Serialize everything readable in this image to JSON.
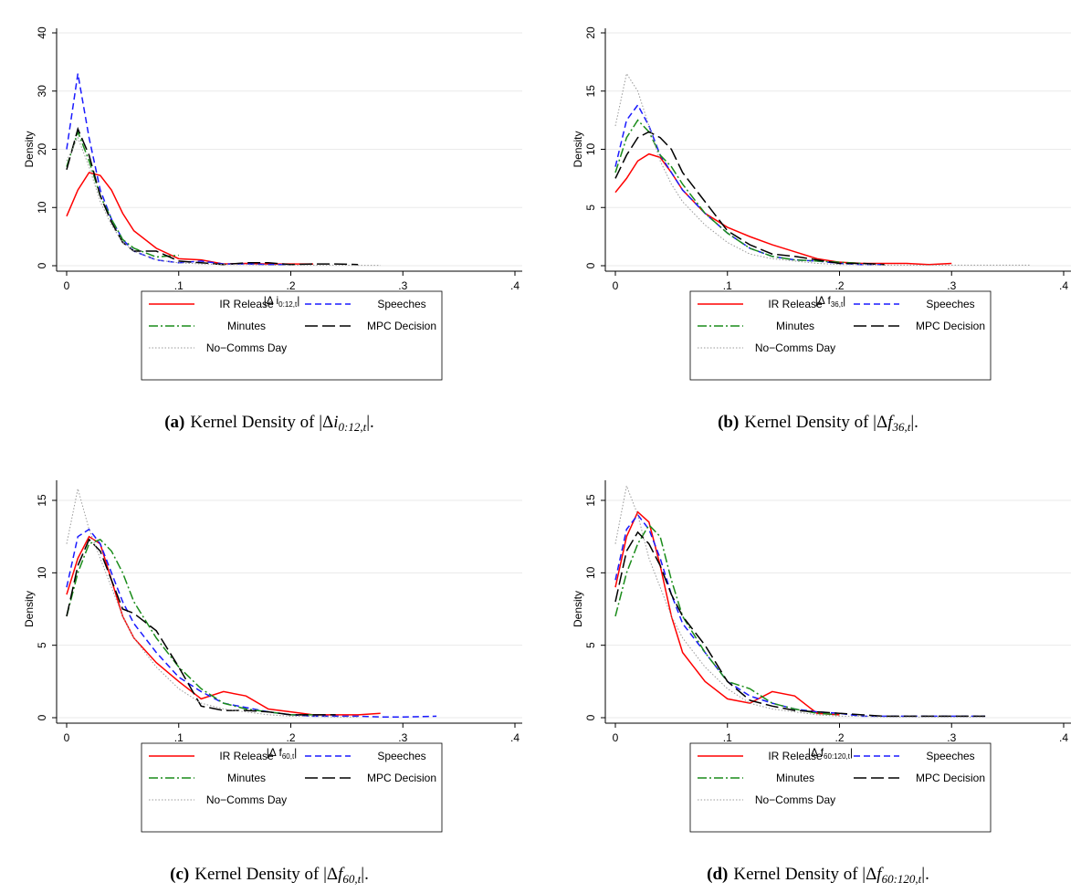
{
  "chart_data": [
    {
      "type": "line",
      "label": "(a)",
      "caption_prefix": "Kernel Density of |Δ",
      "caption_symbol": "i",
      "caption_subscript": "0:12,t",
      "caption_suffix": "|.",
      "xlabel": "|Δ i",
      "xlabel_subscript": "0:12,t",
      "xlabel_suffix": "|",
      "ylabel": "Density",
      "xlim": [
        0,
        0.4
      ],
      "ylim": [
        0,
        40
      ],
      "grid": true,
      "xticks": [
        0,
        {
          "value": 0.1,
          "label": ".1"
        },
        {
          "value": 0.2,
          "label": ".2"
        },
        {
          "value": 0.3,
          "label": ".3"
        },
        {
          "value": 0.4,
          "label": ".4"
        }
      ],
      "yticks": [
        0,
        10,
        20,
        30,
        40
      ],
      "x": [
        0,
        0.01,
        0.02,
        0.03,
        0.04,
        0.05,
        0.06,
        0.08,
        0.1,
        0.12,
        0.14,
        0.16,
        0.18,
        0.2,
        0.22,
        0.24,
        0.26,
        0.28,
        0.3,
        0.33,
        0.37
      ],
      "series": [
        {
          "name": "IR Release",
          "color": "#ff0000",
          "style": "solid",
          "values": [
            8.5,
            13,
            16,
            15.5,
            13,
            9,
            6,
            3,
            1.2,
            1,
            0.3,
            0.4,
            0.3,
            0.3,
            0.3,
            null,
            null,
            null,
            null,
            null,
            null
          ]
        },
        {
          "name": "Speeches",
          "color": "#1a1aff",
          "style": "dashed",
          "values": [
            20,
            33,
            22,
            13,
            8,
            4.5,
            2.5,
            1,
            0.5,
            0.8,
            0.3,
            0.3,
            0.2,
            0.2,
            null,
            null,
            null,
            null,
            null,
            null,
            null
          ]
        },
        {
          "name": "Minutes",
          "color": "#1a8c1a",
          "style": "dashdot",
          "values": [
            17,
            23,
            18,
            12,
            8,
            4.5,
            3,
            1.5,
            1.8,
            null,
            null,
            null,
            null,
            null,
            null,
            null,
            null,
            null,
            null,
            null,
            null
          ]
        },
        {
          "name": "MPC Decision",
          "color": "#000000",
          "style": "longdash",
          "values": [
            16.5,
            23.5,
            19,
            12,
            7.5,
            4,
            2.5,
            2.5,
            0.8,
            0.5,
            0.2,
            0.5,
            0.5,
            0.2,
            0.3,
            0.3,
            0.2,
            null,
            null,
            null,
            null
          ]
        },
        {
          "name": "No−Comms Day",
          "color": "#999999",
          "style": "dotted",
          "values": [
            18,
            22,
            17,
            11,
            7,
            4,
            2.5,
            1,
            0.5,
            0.3,
            0.2,
            0.2,
            0.1,
            0.1,
            0.1,
            0.1,
            0.05,
            0.05,
            null,
            null,
            null
          ]
        }
      ]
    },
    {
      "type": "line",
      "label": "(b)",
      "caption_prefix": "Kernel Density of |Δ",
      "caption_symbol": "f",
      "caption_subscript": "36,t",
      "caption_suffix": "|.",
      "xlabel": "|Δ f",
      "xlabel_subscript": "36,t",
      "xlabel_suffix": "|",
      "ylabel": "Density",
      "xlim": [
        0,
        0.4
      ],
      "ylim": [
        0,
        20
      ],
      "grid": true,
      "xticks": [
        0,
        {
          "value": 0.1,
          "label": ".1"
        },
        {
          "value": 0.2,
          "label": ".2"
        },
        {
          "value": 0.3,
          "label": ".3"
        },
        {
          "value": 0.4,
          "label": ".4"
        }
      ],
      "yticks": [
        0,
        5,
        10,
        15,
        20
      ],
      "x": [
        0,
        0.01,
        0.02,
        0.03,
        0.04,
        0.05,
        0.06,
        0.08,
        0.1,
        0.12,
        0.14,
        0.16,
        0.18,
        0.2,
        0.22,
        0.24,
        0.26,
        0.28,
        0.3,
        0.33,
        0.37
      ],
      "series": [
        {
          "name": "IR Release",
          "color": "#ff0000",
          "style": "solid",
          "values": [
            6.3,
            7.5,
            9,
            9.6,
            9.3,
            8,
            6.5,
            4.5,
            3.3,
            2.5,
            1.8,
            1.2,
            0.6,
            0.3,
            0.2,
            0.2,
            0.2,
            0.1,
            0.2,
            null,
            null
          ]
        },
        {
          "name": "Speeches",
          "color": "#1a1aff",
          "style": "dashed",
          "values": [
            8.5,
            12.5,
            13.8,
            12,
            9.5,
            8,
            6.5,
            4.5,
            2.8,
            1.5,
            0.8,
            0.5,
            0.4,
            0.2,
            0.1,
            0.1,
            null,
            null,
            null,
            null,
            null
          ]
        },
        {
          "name": "Minutes",
          "color": "#1a8c1a",
          "style": "dashdot",
          "values": [
            8,
            11,
            12.5,
            11.5,
            9.5,
            8.5,
            7,
            4.5,
            2.8,
            1.5,
            0.8,
            0.5,
            0.4,
            0.3,
            0.2,
            null,
            null,
            null,
            null,
            null,
            null
          ]
        },
        {
          "name": "MPC Decision",
          "color": "#000000",
          "style": "longdash",
          "values": [
            7.5,
            9.5,
            11,
            11.5,
            11,
            10,
            8,
            5.5,
            3,
            1.8,
            1,
            0.8,
            0.5,
            0.2,
            0.2,
            0.1,
            null,
            null,
            null,
            null,
            null
          ]
        },
        {
          "name": "No−Comms Day",
          "color": "#999999",
          "style": "dotted",
          "values": [
            12,
            16.5,
            15,
            12,
            9,
            7,
            5.5,
            3.5,
            2,
            1,
            0.6,
            0.4,
            0.2,
            0.1,
            0.1,
            0.05,
            0.05,
            0.05,
            0.05,
            0.05,
            0.05
          ]
        }
      ]
    },
    {
      "type": "line",
      "label": "(c)",
      "caption_prefix": "Kernel Density of |Δ",
      "caption_symbol": "f",
      "caption_subscript": "60,t",
      "caption_suffix": "|.",
      "xlabel": "|Δ f",
      "xlabel_subscript": "60,t",
      "xlabel_suffix": "|",
      "ylabel": "Density",
      "xlim": [
        0,
        0.4
      ],
      "ylim": [
        0,
        15
      ],
      "grid": true,
      "xticks": [
        0,
        {
          "value": 0.1,
          "label": ".1"
        },
        {
          "value": 0.2,
          "label": ".2"
        },
        {
          "value": 0.3,
          "label": ".3"
        },
        {
          "value": 0.4,
          "label": ".4"
        }
      ],
      "yticks": [
        0,
        5,
        10,
        15
      ],
      "x": [
        0,
        0.01,
        0.02,
        0.03,
        0.04,
        0.05,
        0.06,
        0.08,
        0.1,
        0.12,
        0.14,
        0.16,
        0.18,
        0.2,
        0.22,
        0.24,
        0.26,
        0.28,
        0.3,
        0.33,
        0.37
      ],
      "series": [
        {
          "name": "IR Release",
          "color": "#ff0000",
          "style": "solid",
          "values": [
            8.5,
            11,
            12.5,
            12,
            9.5,
            7,
            5.5,
            3.8,
            2.5,
            1.3,
            1.8,
            1.5,
            0.6,
            0.4,
            0.2,
            0.2,
            0.2,
            0.3,
            null,
            null,
            null
          ]
        },
        {
          "name": "Speeches",
          "color": "#1a1aff",
          "style": "dashed",
          "values": [
            9,
            12.5,
            13,
            12,
            10,
            8,
            6.5,
            4.5,
            2.8,
            1.8,
            1,
            0.7,
            0.4,
            0.2,
            0.1,
            0.1,
            0.1,
            0.05,
            0.05,
            0.1,
            null
          ]
        },
        {
          "name": "Minutes",
          "color": "#1a8c1a",
          "style": "dashdot",
          "values": [
            7,
            10,
            12,
            12.3,
            11.5,
            10,
            8,
            5.5,
            3.5,
            2,
            1,
            0.6,
            0.4,
            0.2,
            0.2,
            null,
            null,
            null,
            null,
            null,
            null
          ]
        },
        {
          "name": "MPC Decision",
          "color": "#000000",
          "style": "longdash",
          "values": [
            7,
            10.5,
            12.3,
            11.5,
            9.5,
            7.5,
            7.2,
            6,
            3.5,
            0.8,
            0.5,
            0.5,
            0.4,
            0.2,
            0.2,
            0.2,
            null,
            null,
            null,
            null,
            null
          ]
        },
        {
          "name": "No−Comms Day",
          "color": "#999999",
          "style": "dotted",
          "values": [
            12,
            15.8,
            13,
            11,
            9,
            7,
            5.5,
            3.5,
            2,
            1,
            0.6,
            0.4,
            0.2,
            0.1,
            0.1,
            0.05,
            0.05,
            null,
            null,
            null,
            null
          ]
        }
      ]
    },
    {
      "type": "line",
      "label": "(d)",
      "caption_prefix": "Kernel Density of |Δ",
      "caption_symbol": "f",
      "caption_subscript": "60:120,t",
      "caption_suffix": "|.",
      "xlabel": "|Δ f",
      "xlabel_subscript": "60:120,t",
      "xlabel_suffix": "|",
      "ylabel": "Density",
      "xlim": [
        0,
        0.4
      ],
      "ylim": [
        0,
        15
      ],
      "grid": true,
      "xticks": [
        0,
        {
          "value": 0.1,
          "label": ".1"
        },
        {
          "value": 0.2,
          "label": ".2"
        },
        {
          "value": 0.3,
          "label": ".3"
        },
        {
          "value": 0.4,
          "label": ".4"
        }
      ],
      "yticks": [
        0,
        5,
        10,
        15
      ],
      "x": [
        0,
        0.01,
        0.02,
        0.03,
        0.04,
        0.05,
        0.06,
        0.08,
        0.1,
        0.12,
        0.14,
        0.16,
        0.18,
        0.2,
        0.22,
        0.24,
        0.26,
        0.28,
        0.3,
        0.33,
        0.37
      ],
      "series": [
        {
          "name": "IR Release",
          "color": "#ff0000",
          "style": "solid",
          "values": [
            9,
            12.5,
            14.2,
            13.5,
            10.5,
            7,
            4.5,
            2.5,
            1.3,
            1,
            1.8,
            1.5,
            0.3,
            0.2,
            null,
            null,
            null,
            null,
            null,
            null,
            null
          ]
        },
        {
          "name": "Speeches",
          "color": "#1a1aff",
          "style": "dashed",
          "values": [
            9.5,
            13,
            14,
            13,
            11,
            8.5,
            6.5,
            4.5,
            2.5,
            1.5,
            1,
            0.6,
            0.4,
            0.3,
            0.1,
            0.1,
            0.1,
            0.1,
            0.1,
            0.1,
            null
          ]
        },
        {
          "name": "Minutes",
          "color": "#1a8c1a",
          "style": "dashdot",
          "values": [
            7,
            10,
            12,
            13.3,
            12.5,
            9.5,
            7,
            4.5,
            2.5,
            2,
            1,
            0.6,
            0.3,
            0.2,
            null,
            null,
            null,
            null,
            null,
            null,
            null
          ]
        },
        {
          "name": "MPC Decision",
          "color": "#000000",
          "style": "longdash",
          "values": [
            8,
            11.5,
            12.8,
            12,
            10.5,
            8.5,
            7,
            5,
            2.5,
            1.2,
            0.8,
            0.5,
            0.4,
            0.3,
            0.2,
            0.1,
            0.1,
            0.1,
            0.1,
            0.1,
            null
          ]
        },
        {
          "name": "No−Comms Day",
          "color": "#999999",
          "style": "dotted",
          "values": [
            12,
            16,
            14,
            11,
            9,
            7,
            5.5,
            3.5,
            2,
            1,
            0.6,
            0.4,
            0.2,
            0.1,
            0.1,
            0.05,
            0.05,
            0.05,
            0.05,
            0.05,
            null
          ]
        }
      ]
    }
  ]
}
